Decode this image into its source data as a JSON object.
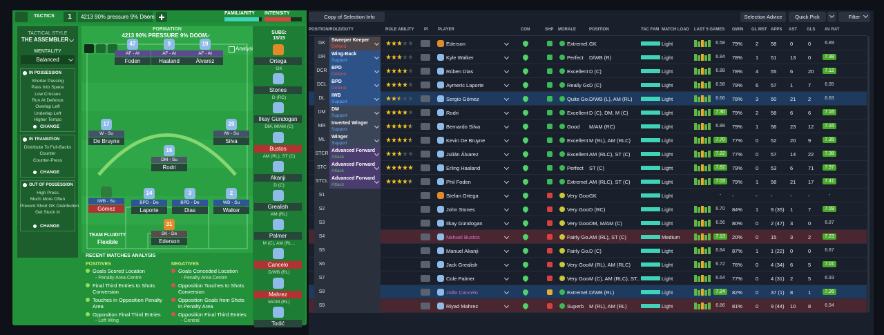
{
  "header": {
    "tactics": "TACTICS",
    "slot": "1",
    "tactic_name": "4213 90% pressure 9% Doom",
    "familiarity": "FAMILIARITY",
    "intensity": "INTENSITY"
  },
  "sidebar": {
    "style_label": "TACTICAL STYLE",
    "style": "THE ASSEMBLER",
    "mentality_label": "MENTALITY",
    "mentality": "Balanced",
    "sections": [
      {
        "title": "IN POSSESSION",
        "items": [
          "Shorter Passing",
          "Pass Into Space",
          "Low Crosses",
          "Run At Defence",
          "Overlap Left",
          "Underlap Left",
          "Higher Tempo"
        ],
        "button": "CHANGE"
      },
      {
        "title": "IN TRANSITION",
        "items": [
          "Distribute To Full-Backs",
          "Counter",
          "Counter-Press"
        ],
        "button": "CHANGE"
      },
      {
        "title": "OUT OF POSSESSION",
        "items": [
          "High Press",
          "Much More Often",
          "Prevent Short GK Distribution",
          "Get Stuck In"
        ],
        "button": "CHANGE"
      }
    ]
  },
  "pitch": {
    "formation_label": "FORMATION",
    "formation": "4213 90% PRESSURE 9% DOOM",
    "analysis": "Analysis",
    "fluidity_label": "TEAM FLUIDITY",
    "fluidity": "Flexible",
    "players": [
      {
        "number": "47",
        "role": "AF - At",
        "name": "Foden",
        "role_color": "#5b4b8e",
        "bar_color": "#27473a"
      },
      {
        "number": "9",
        "role": "AF - At",
        "name": "Haaland",
        "role_color": "#5b4b8e",
        "bar_color": "#27473a"
      },
      {
        "number": "19",
        "role": "AF - At",
        "name": "Álvarez",
        "role_color": "#5b4b8e",
        "bar_color": "#27473a"
      },
      {
        "number": "17",
        "role": "W - Su",
        "name": "De Bruyne",
        "role_color": "#45506a",
        "bar_color": "#27473a"
      },
      {
        "number": "20",
        "role": "IW - Su",
        "name": "Silva",
        "role_color": "#45506a",
        "bar_color": "#27473a"
      },
      {
        "number": "16",
        "role": "DM - Su",
        "name": "Rodri",
        "role_color": "#4e5666",
        "bar_color": "#27473a"
      },
      {
        "role": "IWB - Su",
        "name": "Gómez",
        "role_color": "#2f5592",
        "bar_color": "#b23232"
      },
      {
        "number": "14",
        "role": "BPD - De",
        "name": "Laporte",
        "role_color": "#2f5592",
        "bar_color": "#27473a"
      },
      {
        "number": "3",
        "role": "BPD - De",
        "name": "Dias",
        "role_color": "#2f5592",
        "bar_color": "#27473a"
      },
      {
        "number": "2",
        "role": "WB - Su",
        "name": "Walker",
        "role_color": "#2f5592",
        "bar_color": "#27473a"
      },
      {
        "number": "31",
        "role": "SK - De",
        "name": "Ederson",
        "role_color": "#5a4b4f",
        "bar_color": "#27473a"
      }
    ]
  },
  "subs": {
    "label": "SUBS:",
    "count": "15/15",
    "players": [
      {
        "name": "Ortega",
        "position": "GK",
        "color": "#27473a"
      },
      {
        "name": "Stones",
        "position": "D (RC)",
        "color": "#27473a"
      },
      {
        "name": "Ilkay Gündogan",
        "position": "DM, M/AM (C)",
        "color": "#27473a"
      },
      {
        "name": "Bustos",
        "position": "AM (RL), ST (C)",
        "color": "#b23232"
      },
      {
        "name": "Akanji",
        "position": "D (C)",
        "color": "#27473a"
      },
      {
        "name": "Grealish",
        "position": "AM (RL)",
        "color": "#27473a"
      },
      {
        "name": "Palmer",
        "position": "M (C), AM (RL...",
        "color": "#27473a"
      },
      {
        "name": "Cancelo",
        "position": "D/WB (RL)",
        "color": "#b23232"
      },
      {
        "name": "Mahrez",
        "position": "M/AM (RL)",
        "color": "#b23232"
      },
      {
        "name": "Todić",
        "color": "#27473a"
      }
    ]
  },
  "analysis": {
    "title": "RECENT MATCHES ANALYSIS",
    "positives_label": "POSITIVES",
    "positives": [
      {
        "text": "Goals Scored Location",
        "detail": "- Penalty Area Centre"
      },
      {
        "text": "Final Third Entries to Shots Conversion"
      },
      {
        "text": "Touches in Opposition Penalty Area"
      },
      {
        "text": "Opposition Final Third Entries",
        "detail": "- Left Wing"
      }
    ],
    "negatives_label": "NEGATIVES",
    "negatives": [
      {
        "text": "Goals Conceded Location",
        "detail": "- Penalty Area Centre"
      },
      {
        "text": "Opposition Touches to Shots Conversion"
      },
      {
        "text": "Opposition Goals from Shots in Penalty Area"
      },
      {
        "text": "Opposition Final Third Entries",
        "detail": "- Central"
      }
    ]
  },
  "toolbar": {
    "view": "Copy of Selection Info",
    "selection_advice": "Selection Advice",
    "quick_pick": "Quick Pick",
    "filter": "Filter"
  },
  "table": {
    "columns": [
      "POSITION/ROLE/DUTY",
      "ROLE ABILITY",
      "PI",
      "PLAYER",
      "CON",
      "SHP",
      "MORALE",
      "POSITION",
      "TAC FAM",
      "MATCH LOAD",
      "LAST 5 GAMES",
      "GWIN",
      "GL MST",
      "APPS",
      "AST",
      "GLS",
      "AV RAT"
    ],
    "rows": [
      {
        "slot": "GK",
        "role": "Sweeper Keeper",
        "duty": "Defend",
        "duty_color": "#e0564f",
        "role_color": "#4d4448",
        "role_ability": 3,
        "player": "Ederson",
        "kit_color": "#e08a2a",
        "morale": "Extremel...",
        "position": "GK",
        "match_load": "Light",
        "last5": "6.58",
        "gwin": "79%",
        "glmst": "2",
        "apps": "58",
        "ast": "0",
        "gls": "0",
        "avrat": "6.89"
      },
      {
        "slot": "DR",
        "role": "Wing-Back",
        "duty": "Support",
        "duty_color": "#67a7ff",
        "role_color": "#2d5288",
        "role_ability": 3,
        "player": "Kyle Walker",
        "morale": "Perfect",
        "position": "D/WB (R)",
        "match_load": "Light",
        "last5": "6.84",
        "gwin": "78%",
        "glmst": "1",
        "apps": "51",
        "ast": "13",
        "gls": "0",
        "avrat": "7.38"
      },
      {
        "slot": "DCR",
        "role": "BPD",
        "duty": "Defend",
        "duty_color": "#e0564f",
        "role_color": "#2d5288",
        "role_ability": 4,
        "player": "Rúben Dias",
        "morale": "Excellent",
        "position": "D (C)",
        "match_load": "Light",
        "last5": "6.88",
        "gwin": "78%",
        "glmst": "4",
        "apps": "55",
        "ast": "6",
        "gls": "20",
        "avrat": "7.12"
      },
      {
        "slot": "DCL",
        "role": "BPD",
        "duty": "Defend",
        "duty_color": "#e0564f",
        "role_color": "#2d5288",
        "role_ability": 4,
        "player": "Aymeric Laporte",
        "morale": "Really Go...",
        "position": "D (C)",
        "match_load": "Light",
        "last5": "6.58",
        "gwin": "79%",
        "glmst": "6",
        "apps": "57",
        "ast": "1",
        "gls": "7",
        "avrat": "6.95"
      },
      {
        "slot": "DL",
        "role": "IWB",
        "duty": "Support",
        "duty_color": "#67a7ff",
        "role_color": "#2d5288",
        "role_ability": 2.5,
        "player": "Sergio Gómez",
        "morale": "Quite Go...",
        "position": "D/WB (L), AM (RL)",
        "match_load": "Light",
        "last5": "6.66",
        "gwin": "78%",
        "glmst": "3",
        "apps": "50",
        "ast": "21",
        "gls": "2",
        "avrat": "6.83",
        "highlight": "#1e3a5e"
      },
      {
        "slot": "DM",
        "role": "DM",
        "duty": "Support",
        "duty_color": "#67a7ff",
        "role_color": "#3b4558",
        "role_ability": 4,
        "player": "Rodri",
        "morale": "Excellent",
        "position": "D (C), DM, M (C)",
        "match_load": "Light",
        "last5": "7.30",
        "gwin": "79%",
        "glmst": "2",
        "apps": "58",
        "ast": "6",
        "gls": "6",
        "avrat": "7.16"
      },
      {
        "slot": "MR",
        "role": "Inverted Winger",
        "duty": "Support",
        "duty_color": "#67a7ff",
        "role_color": "#3b4558",
        "role_ability": 4.5,
        "player": "Bernardo Silva",
        "morale": "Good",
        "position": "M/AM (RC)",
        "match_load": "Light",
        "last5": "6.88",
        "gwin": "79%",
        "glmst": "1",
        "apps": "56",
        "ast": "23",
        "gls": "12",
        "avrat": "7.16"
      },
      {
        "slot": "ML",
        "role": "Winger",
        "duty": "Support",
        "duty_color": "#67a7ff",
        "role_color": "#3b4558",
        "role_ability": 4.5,
        "player": "Kevin De Bruyne",
        "morale": "Excellent",
        "position": "M (RL), AM (RLC)",
        "match_load": "Light",
        "last5": "7.70",
        "gwin": "77%",
        "glmst": "0",
        "apps": "52",
        "ast": "20",
        "gls": "9",
        "avrat": "7.35"
      },
      {
        "slot": "STCR",
        "role": "Advanced Forward",
        "duty": "Attack",
        "duty_color": "#57c957",
        "role_color": "#4b3c70",
        "role_ability": 3,
        "player": "Julián Álvarez",
        "morale": "Excellent",
        "position": "AM (RLC), ST (C)",
        "match_load": "Light",
        "last5": "7.22",
        "gwin": "77%",
        "glmst": "0",
        "apps": "57",
        "ast": "14",
        "gls": "22",
        "avrat": "7.38"
      },
      {
        "slot": "STC",
        "role": "Advanced Forward",
        "duty": "Attack",
        "duty_color": "#57c957",
        "role_color": "#4b3c70",
        "role_ability": 5,
        "player": "Erling Haaland",
        "morale": "Perfect",
        "position": "ST (C)",
        "match_load": "Light",
        "last5": "7.82",
        "gwin": "79%",
        "glmst": "0",
        "apps": "53",
        "ast": "6",
        "gls": "71",
        "avrat": "7.97"
      },
      {
        "slot": "STCL",
        "role": "Advanced Forward",
        "duty": "Attack",
        "duty_color": "#57c957",
        "role_color": "#4b3c70",
        "role_ability": 4.5,
        "player": "Phil Foden",
        "morale": "Extremel...",
        "position": "AM (RLC), ST (C)",
        "match_load": "Light",
        "last5": "7.03",
        "gwin": "79%",
        "glmst": "1",
        "apps": "58",
        "ast": "21",
        "gls": "17",
        "avrat": "7.41"
      },
      {
        "slot": "S1",
        "player": "Stefan Ortega",
        "kit_color": "#e08a2a",
        "morale": "Very Good",
        "position": "GK",
        "match_load": "Light",
        "last5": "-",
        "gwin": "-",
        "glmst": "-",
        "apps": "-",
        "ast": "-",
        "gls": "-",
        "avrat": "-"
      },
      {
        "slot": "S2",
        "player": "John Stones",
        "morale": "Very Good",
        "position": "D (RC)",
        "match_load": "Light",
        "last5": "6.70",
        "gwin": "84%",
        "glmst": "1",
        "apps": "9 (35)",
        "ast": "1",
        "gls": "7",
        "avrat": "7.09"
      },
      {
        "slot": "S3",
        "player": "Ilkay Gündogan",
        "morale": "Very Good",
        "position": "DM, M/AM (C)",
        "match_load": "Light",
        "last5": "6.56",
        "gwin": "80%",
        "glmst": "0",
        "apps": "2 (47)",
        "ast": "3",
        "gls": "0",
        "avrat": "6.87"
      },
      {
        "slot": "S4",
        "player": "Nahuel Bustos",
        "name_color": "#d475c8",
        "morale": "Fairly Go...",
        "position": "AM (RL), ST (C)",
        "match_load": "Medium",
        "last5": "7.13",
        "gwin": "20%",
        "glmst": "0",
        "apps": "15",
        "ast": "3",
        "gls": "2",
        "avrat": "7.23",
        "highlight": "#4a2631"
      },
      {
        "slot": "S5",
        "player": "Manuel Akanji",
        "morale": "Fairly Go...",
        "position": "D (C)",
        "match_load": "Light",
        "last5": "6.84",
        "gwin": "87%",
        "glmst": "1",
        "apps": "1 (22)",
        "ast": "0",
        "gls": "0",
        "avrat": "6.87"
      },
      {
        "slot": "S6",
        "player": "Jack Grealish",
        "morale": "Very Good",
        "position": "M (RL), AM (RLC)",
        "match_load": "Light",
        "last5": "6.72",
        "gwin": "76%",
        "glmst": "0",
        "apps": "4 (34)",
        "ast": "6",
        "gls": "5",
        "avrat": "7.01"
      },
      {
        "slot": "S7",
        "player": "Cole Palmer",
        "morale": "Very Good",
        "position": "M (C), AM (RLC), ST...",
        "match_load": "Light",
        "last5": "6.64",
        "gwin": "77%",
        "glmst": "0",
        "apps": "4 (31)",
        "ast": "2",
        "gls": "5",
        "avrat": "6.93"
      },
      {
        "slot": "S8",
        "player": "João Cancelo",
        "name_color": "#d475c8",
        "morale": "Extremel...",
        "position": "D/WB (RL)",
        "match_load": "Light",
        "last5": "7.24",
        "gwin": "82%",
        "glmst": "0",
        "apps": "37 (1)",
        "ast": "8",
        "gls": "1",
        "avrat": "7.26",
        "highlight": "#1e3a5e"
      },
      {
        "slot": "S9",
        "player": "Riyad Mahrez",
        "morale": "Superb",
        "position": "M (RL), AM (RL)",
        "match_load": "Light",
        "last5": "6.86",
        "gwin": "81%",
        "glmst": "0",
        "apps": "9 (44)",
        "ast": "10",
        "gls": "8",
        "avrat": "6.94",
        "highlight": "#4a2631"
      }
    ]
  }
}
